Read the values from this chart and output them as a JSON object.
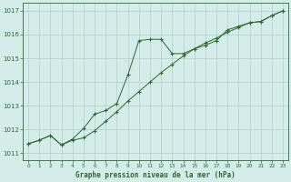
{
  "line1_x": [
    0,
    1,
    2,
    3,
    4,
    5,
    6,
    7,
    8,
    9,
    10,
    11,
    12,
    13,
    14,
    15,
    16,
    17,
    18,
    19,
    20,
    21,
    22,
    23
  ],
  "line1_y": [
    1011.4,
    1011.55,
    1011.75,
    1011.35,
    1011.6,
    1012.05,
    1012.65,
    1012.8,
    1013.1,
    1014.3,
    1015.75,
    1015.8,
    1015.8,
    1015.2,
    1015.2,
    1015.4,
    1015.55,
    1015.75,
    1016.2,
    1016.35,
    1016.5,
    1016.55,
    1016.8,
    1017.0
  ],
  "line2_x": [
    0,
    1,
    2,
    3,
    4,
    5,
    6,
    7,
    8,
    9,
    10,
    11,
    12,
    13,
    14,
    15,
    16,
    17,
    18,
    19,
    20,
    21,
    22,
    23
  ],
  "line2_y": [
    1011.4,
    1011.55,
    1011.75,
    1011.35,
    1011.55,
    1011.65,
    1011.95,
    1012.35,
    1012.75,
    1013.2,
    1013.6,
    1014.0,
    1014.4,
    1014.75,
    1015.1,
    1015.4,
    1015.65,
    1015.85,
    1016.1,
    1016.3,
    1016.5,
    1016.55,
    1016.8,
    1017.0
  ],
  "line_color": "#2d6a2d",
  "bg_color": "#d4ecea",
  "grid_color": "#b0cfc8",
  "xlabel": "Graphe pression niveau de la mer (hPa)",
  "yticks": [
    1011,
    1012,
    1013,
    1014,
    1015,
    1016,
    1017
  ],
  "xticks": [
    0,
    1,
    2,
    3,
    4,
    5,
    6,
    7,
    8,
    9,
    10,
    11,
    12,
    13,
    14,
    15,
    16,
    17,
    18,
    19,
    20,
    21,
    22,
    23
  ],
  "ylim": [
    1010.7,
    1017.35
  ],
  "xlim": [
    -0.5,
    23.5
  ]
}
